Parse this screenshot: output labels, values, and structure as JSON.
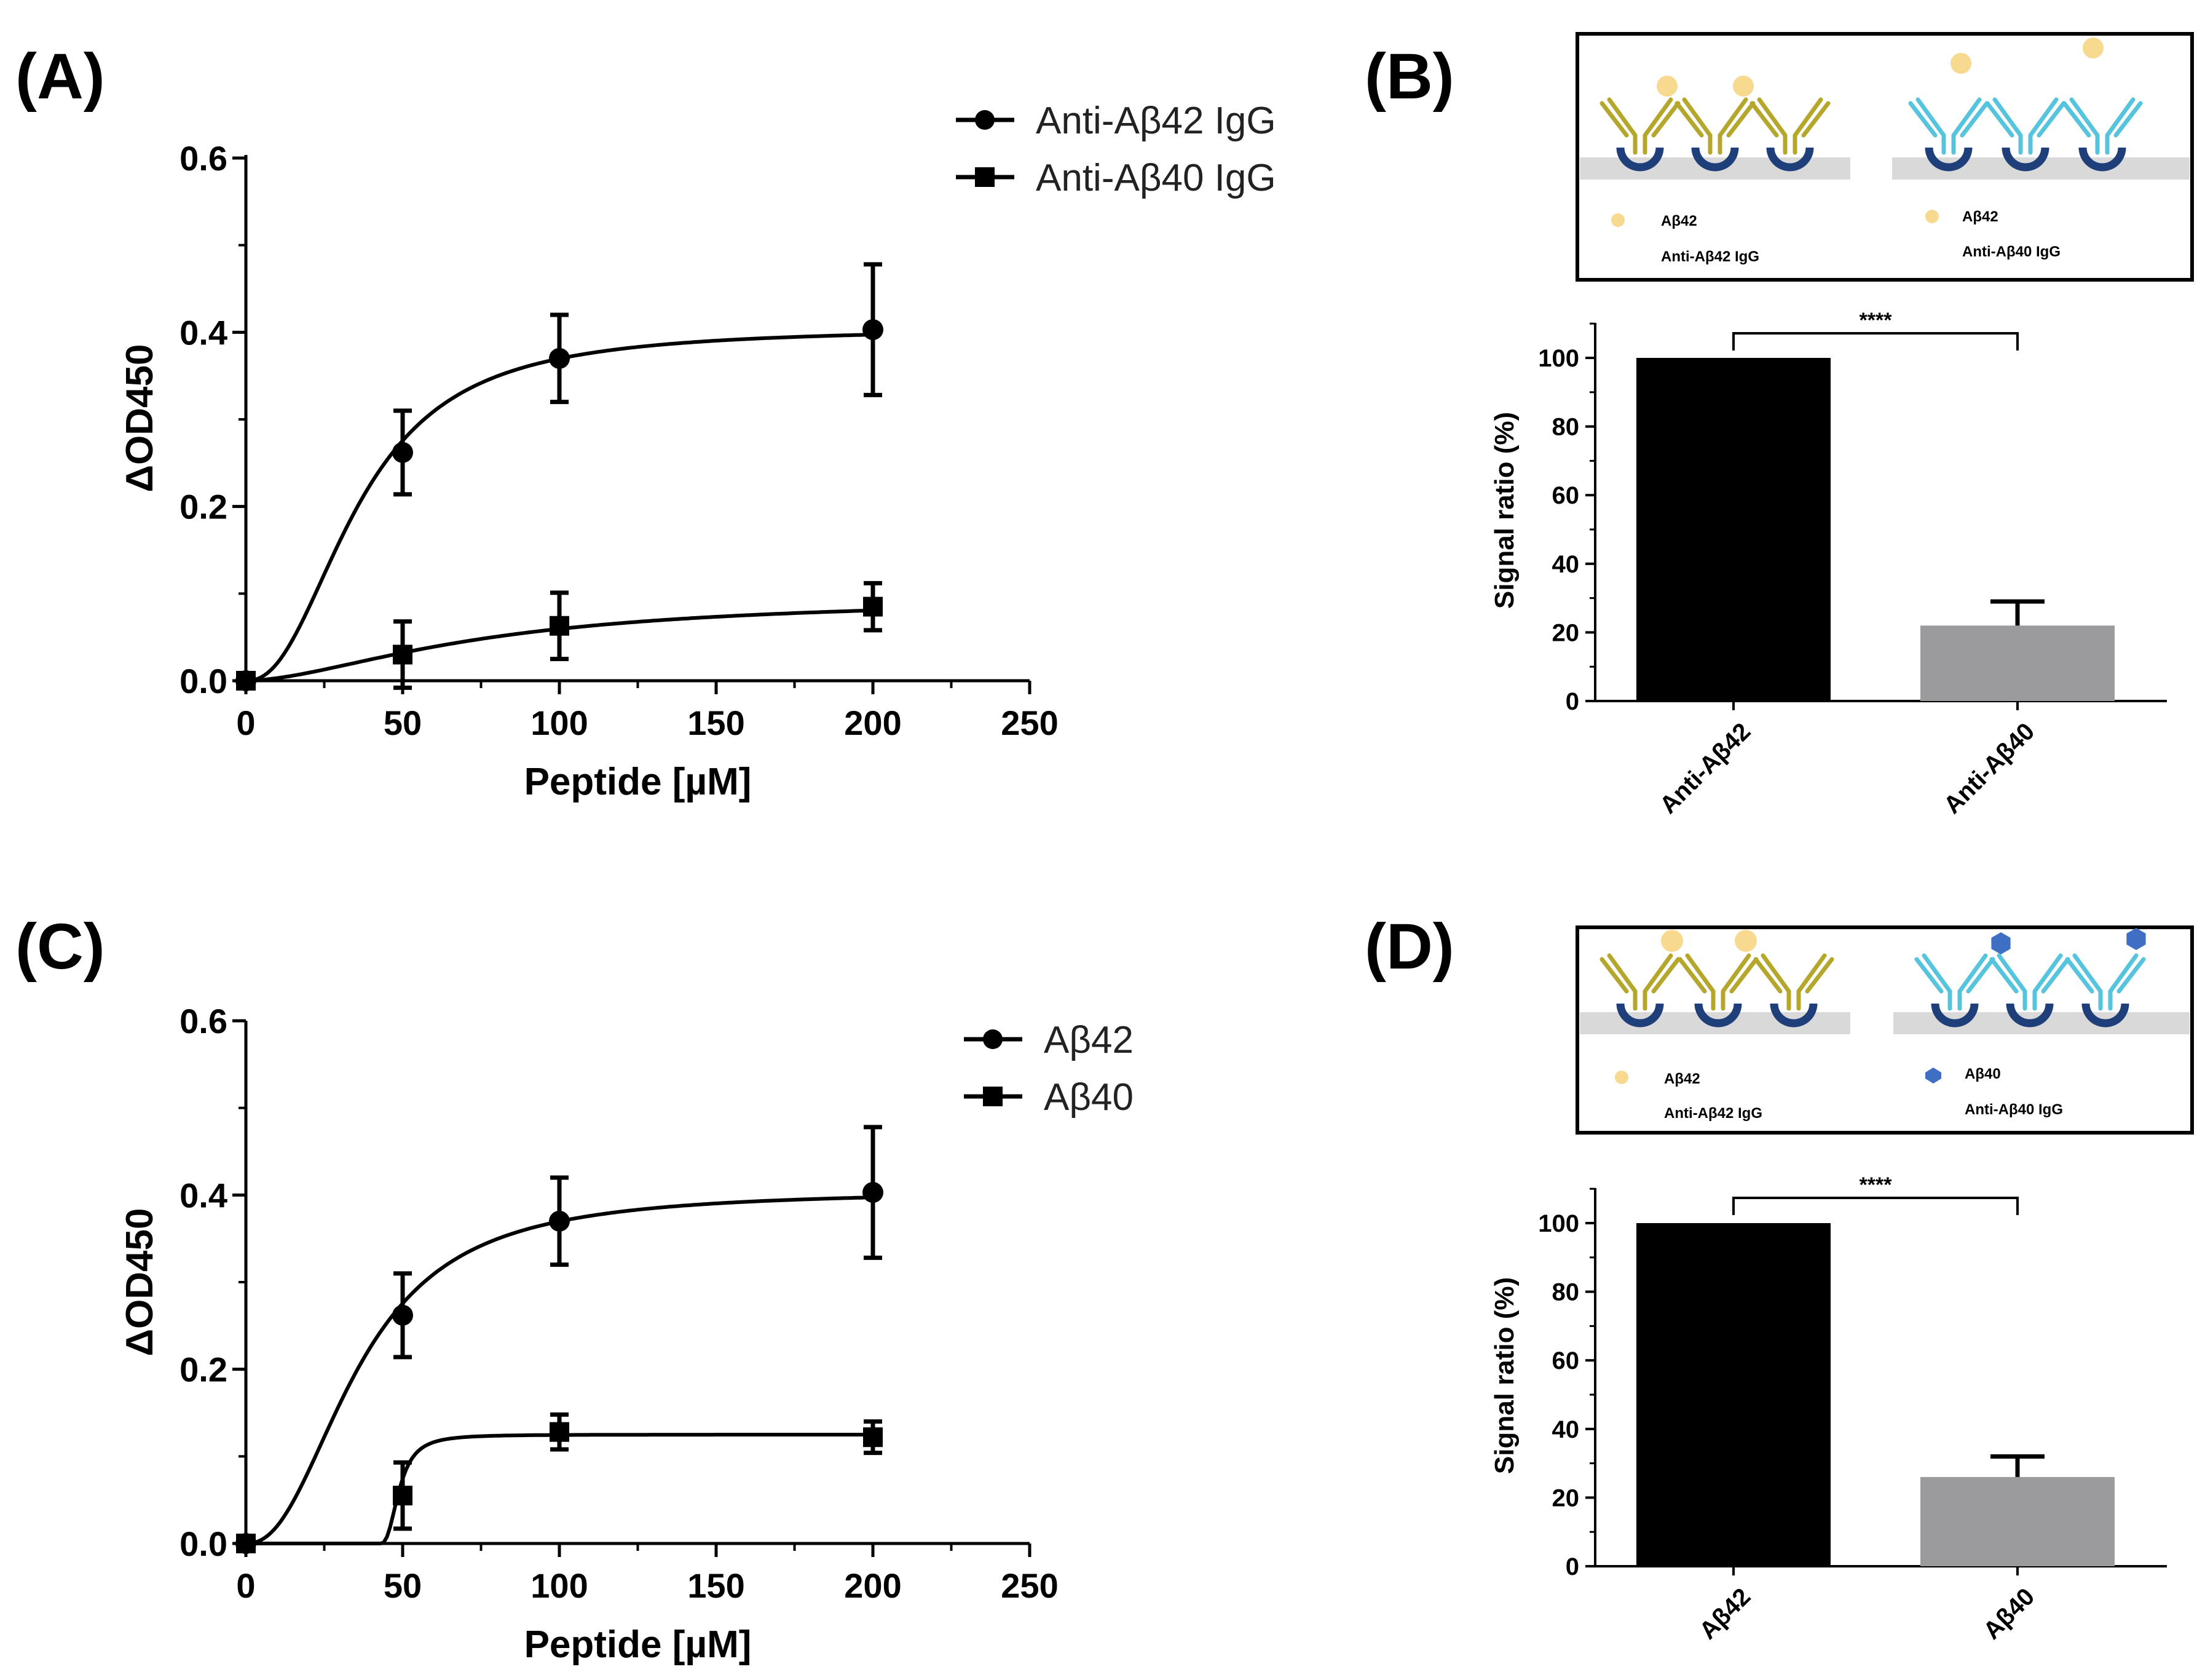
{
  "figure_labels": {
    "A": "(A)",
    "B": "(B)",
    "C": "(C)",
    "D": "(D)"
  },
  "colors": {
    "ink": "#000000",
    "bar_gray": "#9b9b9e",
    "surface": "#d9d9d9",
    "gold": "#b5a72b",
    "cyan": "#55c4dc",
    "navy": "#1f3f7a",
    "peptide": "#f7d98f",
    "ab40_blue": "#3e6fc2"
  },
  "chart_data": [
    {
      "id": "A",
      "type": "line",
      "xlabel": "Peptide [µM]",
      "ylabel": "ΔOD450",
      "xlim": [
        0,
        250
      ],
      "ylim": [
        0,
        0.6
      ],
      "xticks": [
        "0",
        "50",
        "100",
        "150",
        "200",
        "250"
      ],
      "yticks": [
        "0.0",
        "0.2",
        "0.4",
        "0.6"
      ],
      "series": [
        {
          "name": "Anti-Aβ42 IgG",
          "marker": "circle",
          "points": [
            {
              "x": 0,
              "y": 0,
              "err": 0
            },
            {
              "x": 50,
              "y": 0.262,
              "err": 0.048
            },
            {
              "x": 100,
              "y": 0.37,
              "err": 0.05
            },
            {
              "x": 200,
              "y": 0.403,
              "err": 0.075
            }
          ],
          "fit": {
            "model": "sigmoid",
            "ymax": 0.405,
            "ec50": 36,
            "hill": 2.3,
            "x0": 0
          }
        },
        {
          "name": "Anti-Aβ40 IgG",
          "marker": "square",
          "points": [
            {
              "x": 0,
              "y": 0,
              "err": 0
            },
            {
              "x": 50,
              "y": 0.03,
              "err": 0.038
            },
            {
              "x": 100,
              "y": 0.063,
              "err": 0.038
            },
            {
              "x": 200,
              "y": 0.085,
              "err": 0.027
            }
          ],
          "fit": {
            "model": "sigmoid",
            "ymax": 0.096,
            "ec50": 75,
            "hill": 1.7,
            "x0": 0
          }
        }
      ]
    },
    {
      "id": "B",
      "type": "bar",
      "categories": [
        "Anti-Aβ42",
        "Anti-Aβ40"
      ],
      "values": [
        100,
        22
      ],
      "errors": [
        0,
        7
      ],
      "ylabel": "Signal ratio (%)",
      "ylim": [
        0,
        110
      ],
      "yticks": [
        "0",
        "20",
        "40",
        "60",
        "80",
        "100"
      ],
      "significance": "****"
    },
    {
      "id": "C",
      "type": "line",
      "xlabel": "Peptide [µM]",
      "ylabel": "ΔOD450",
      "xlim": [
        0,
        250
      ],
      "ylim": [
        0,
        0.6
      ],
      "xticks": [
        "0",
        "50",
        "100",
        "150",
        "200",
        "250"
      ],
      "yticks": [
        "0.0",
        "0.2",
        "0.4",
        "0.6"
      ],
      "series": [
        {
          "name": "Aβ42",
          "marker": "circle",
          "points": [
            {
              "x": 0,
              "y": 0,
              "err": 0
            },
            {
              "x": 50,
              "y": 0.262,
              "err": 0.048
            },
            {
              "x": 100,
              "y": 0.37,
              "err": 0.05
            },
            {
              "x": 200,
              "y": 0.403,
              "err": 0.075
            }
          ],
          "fit": {
            "model": "sigmoid",
            "ymax": 0.405,
            "ec50": 36,
            "hill": 2.3,
            "x0": 0
          }
        },
        {
          "name": "Aβ40",
          "marker": "square",
          "points": [
            {
              "x": 0,
              "y": 0,
              "err": 0
            },
            {
              "x": 50,
              "y": 0.055,
              "err": 0.038
            },
            {
              "x": 100,
              "y": 0.128,
              "err": 0.02
            },
            {
              "x": 200,
              "y": 0.122,
              "err": 0.018
            }
          ],
          "fit": {
            "model": "sigmoid",
            "ymax": 0.125,
            "ec50": 6,
            "hill": 2.5,
            "x0": 43
          }
        }
      ]
    },
    {
      "id": "D",
      "type": "bar",
      "categories": [
        "Aβ42",
        "Aβ40"
      ],
      "values": [
        100,
        26
      ],
      "errors": [
        0,
        6
      ],
      "ylabel": "Signal ratio (%)",
      "ylim": [
        0,
        110
      ],
      "yticks": [
        "0",
        "20",
        "40",
        "60",
        "80",
        "100"
      ],
      "significance": "****"
    }
  ],
  "diagrams": {
    "B": {
      "left_peptide_label": "Aβ42",
      "left_ab_label": "Anti-Aβ42 IgG",
      "right_peptide_label": "Aβ42",
      "right_ab_label": "Anti-Aβ40 IgG"
    },
    "D": {
      "left_peptide_label": "Aβ42",
      "left_ab_label": "Anti-Aβ42 IgG",
      "right_peptide_label": "Aβ40",
      "right_ab_label": "Anti-Aβ40 IgG"
    }
  }
}
